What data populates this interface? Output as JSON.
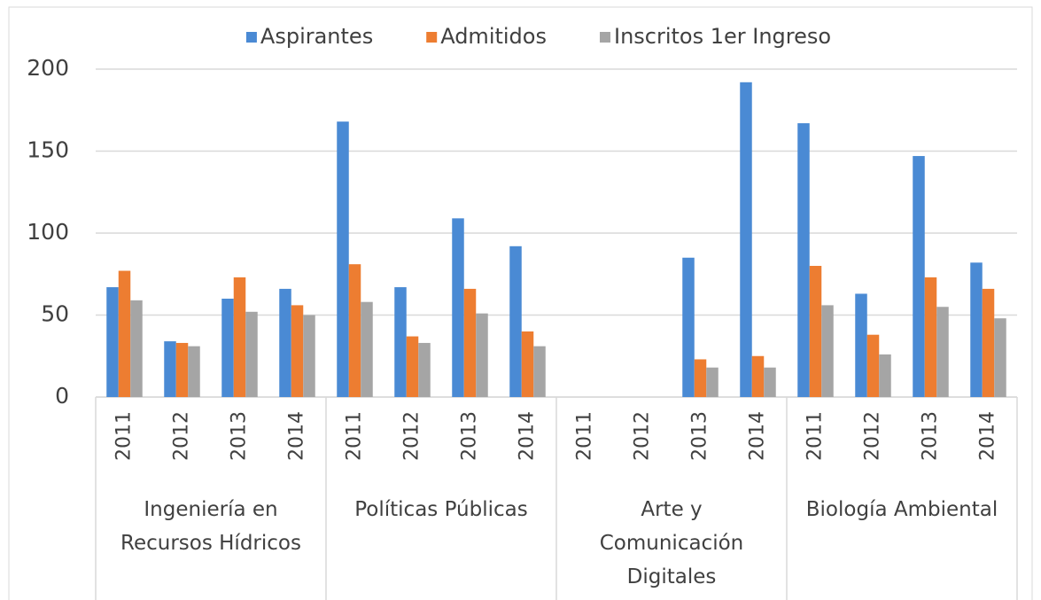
{
  "chart_data": {
    "type": "bar",
    "categories": [
      "2011",
      "2012",
      "2013",
      "2014",
      "2011",
      "2012",
      "2013",
      "2014",
      "2011",
      "2012",
      "2013",
      "2014",
      "2011",
      "2012",
      "2013",
      "2014"
    ],
    "groups": [
      "Ingeniería en Recursos Hídricos",
      "Políticas Públicas",
      "Arte y Comunicación Digitales",
      "Biología Ambiental"
    ],
    "series": [
      {
        "name": "Aspirantes",
        "color": "#4a8ad4",
        "values": [
          67,
          34,
          60,
          66,
          168,
          67,
          109,
          92,
          null,
          null,
          85,
          192,
          167,
          63,
          147,
          82
        ]
      },
      {
        "name": "Admitidos",
        "color": "#ed7d31",
        "values": [
          77,
          33,
          73,
          56,
          81,
          37,
          66,
          40,
          null,
          null,
          23,
          25,
          80,
          38,
          73,
          66
        ]
      },
      {
        "name": "Inscritos 1er Ingreso",
        "color": "#a5a5a5",
        "values": [
          59,
          31,
          52,
          50,
          58,
          33,
          51,
          31,
          null,
          null,
          18,
          18,
          56,
          26,
          55,
          48
        ]
      }
    ],
    "ylim": [
      0,
      200
    ],
    "yticks": [
      0,
      50,
      100,
      150,
      200
    ],
    "grid": true,
    "legend": "top"
  }
}
